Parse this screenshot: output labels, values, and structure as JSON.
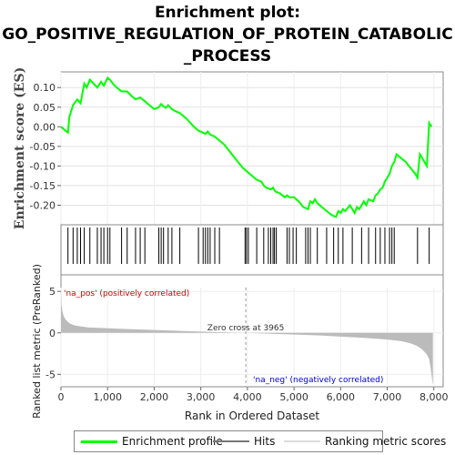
{
  "title_lines": [
    "Enrichment plot:",
    "GO_POSITIVE_REGULATION_OF_PROTEIN_CATABOLIC",
    "_PROCESS"
  ],
  "colors": {
    "enrichment_line": "#00ff00",
    "hits": "#000000",
    "ranking_fill": "#bbbbbb",
    "pos_label": "#cc0000",
    "neg_label": "#0000cc",
    "zero_cross_line": "#999999"
  },
  "chart_data": [
    {
      "type": "line",
      "name": "enrichment-profile",
      "ylabel": "Enrichment score (ES)",
      "xlim": [
        0,
        8200
      ],
      "ylim": [
        -0.25,
        0.14
      ],
      "yticks": [
        0.1,
        0.05,
        0.0,
        -0.05,
        -0.1,
        -0.15,
        -0.2
      ],
      "ytick_labels": [
        "0.10",
        "0.05",
        "0.00",
        "-0.05",
        "-0.10",
        "-0.15",
        "-0.20"
      ],
      "grid": true,
      "series": [
        {
          "x": [
            0,
            150,
            180,
            260,
            350,
            420,
            500,
            550,
            620,
            700,
            780,
            860,
            920,
            1000,
            1050,
            1150,
            1300,
            1420,
            1500,
            1600,
            1700,
            1800,
            1900,
            2000,
            2100,
            2150,
            2200,
            2250,
            2300,
            2380,
            2450,
            2550,
            2700,
            2850,
            2950,
            3050,
            3100,
            3150,
            3200,
            3300,
            3400,
            3500,
            3600,
            3700,
            3800,
            3900,
            4000,
            4100,
            4200,
            4300,
            4350,
            4400,
            4500,
            4550,
            4600,
            4700,
            4800,
            4850,
            4900,
            5000,
            5100,
            5200,
            5300,
            5350,
            5400,
            5450,
            5500,
            5600,
            5700,
            5800,
            5900,
            5950,
            6000,
            6050,
            6100,
            6200,
            6250,
            6300,
            6350,
            6400,
            6500,
            6550,
            6600,
            6700,
            6750,
            6800,
            6850,
            6900,
            6950,
            7000,
            7050,
            7100,
            7150,
            7200,
            7300,
            7400,
            7500,
            7600,
            7650,
            7700,
            7750,
            7800,
            7850,
            7900,
            7950
          ],
          "y": [
            0.0,
            -0.015,
            0.025,
            0.055,
            0.07,
            0.06,
            0.11,
            0.1,
            0.12,
            0.11,
            0.1,
            0.115,
            0.105,
            0.125,
            0.12,
            0.105,
            0.09,
            0.09,
            0.08,
            0.07,
            0.075,
            0.065,
            0.055,
            0.045,
            0.05,
            0.058,
            0.052,
            0.048,
            0.055,
            0.045,
            0.04,
            0.035,
            0.02,
            0.0,
            -0.01,
            -0.015,
            -0.018,
            -0.012,
            -0.02,
            -0.025,
            -0.035,
            -0.045,
            -0.06,
            -0.075,
            -0.09,
            -0.105,
            -0.115,
            -0.125,
            -0.135,
            -0.14,
            -0.15,
            -0.155,
            -0.16,
            -0.155,
            -0.165,
            -0.17,
            -0.18,
            -0.175,
            -0.18,
            -0.18,
            -0.19,
            -0.205,
            -0.21,
            -0.19,
            -0.195,
            -0.185,
            -0.195,
            -0.205,
            -0.215,
            -0.225,
            -0.23,
            -0.215,
            -0.22,
            -0.21,
            -0.215,
            -0.2,
            -0.21,
            -0.22,
            -0.205,
            -0.21,
            -0.19,
            -0.2,
            -0.185,
            -0.19,
            -0.175,
            -0.17,
            -0.16,
            -0.155,
            -0.14,
            -0.13,
            -0.12,
            -0.1,
            -0.09,
            -0.07,
            -0.08,
            -0.09,
            -0.105,
            -0.12,
            -0.13,
            -0.07,
            -0.08,
            -0.09,
            -0.1,
            0.01,
            0.0
          ]
        }
      ]
    },
    {
      "type": "hits",
      "name": "hits",
      "xlim": [
        0,
        8200
      ],
      "positions": [
        150,
        260,
        350,
        420,
        500,
        620,
        780,
        860,
        920,
        1000,
        1050,
        1300,
        1420,
        1600,
        1700,
        1800,
        2100,
        2150,
        2200,
        2300,
        2380,
        2550,
        2950,
        3050,
        3100,
        3150,
        3200,
        3300,
        3400,
        3950,
        3980,
        4020,
        4200,
        4350,
        4450,
        4500,
        4550,
        4580,
        4620,
        4850,
        4900,
        4980,
        5050,
        5250,
        5300,
        5350,
        5500,
        5700,
        5850,
        5950,
        6050,
        6250,
        6450,
        6600,
        6750,
        6850,
        6950,
        7050,
        7100,
        7150,
        7650,
        7900
      ]
    },
    {
      "type": "area",
      "name": "ranked-list-metric",
      "xlabel": "Rank in Ordered Dataset",
      "ylabel": "Ranked list metric (PreRanked)",
      "xlim": [
        0,
        8200
      ],
      "ylim": [
        -6.5,
        7
      ],
      "yticks": [
        5,
        0,
        -5
      ],
      "ytick_labels": [
        "5",
        "0",
        "-5"
      ],
      "xticks": [
        0,
        1000,
        2000,
        3000,
        4000,
        5000,
        6000,
        7000,
        8000
      ],
      "xtick_labels": [
        "0",
        "1,000",
        "2,000",
        "3,000",
        "4,000",
        "5,000",
        "6,000",
        "7,000",
        "8,000"
      ],
      "x": [
        0,
        10,
        30,
        60,
        100,
        150,
        200,
        300,
        400,
        600,
        800,
        1000,
        1500,
        2000,
        2500,
        3000,
        3500,
        3965,
        4500,
        5000,
        5500,
        6000,
        6500,
        7000,
        7300,
        7500,
        7650,
        7750,
        7850,
        7900,
        7930,
        7960,
        7980
      ],
      "y": [
        5.5,
        3.5,
        2.6,
        2.0,
        1.6,
        1.3,
        1.1,
        0.9,
        0.8,
        0.65,
        0.6,
        0.55,
        0.45,
        0.35,
        0.25,
        0.15,
        0.07,
        0.0,
        -0.1,
        -0.2,
        -0.3,
        -0.45,
        -0.6,
        -0.8,
        -1.0,
        -1.25,
        -1.6,
        -2.0,
        -2.6,
        -3.2,
        -4.2,
        -5.5,
        -6.3
      ],
      "annotations": {
        "zero_cross": "Zero cross at 3965",
        "zero_cross_rank": 3965,
        "pos": "'na_pos' (positively correlated)",
        "neg": "'na_neg' (negatively correlated)"
      }
    }
  ],
  "legend": {
    "items": [
      {
        "label": "Enrichment profile"
      },
      {
        "label": "Hits"
      },
      {
        "label": "Ranking metric scores"
      }
    ]
  }
}
